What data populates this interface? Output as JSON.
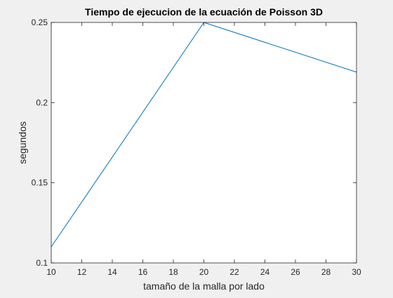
{
  "chart_data": {
    "type": "line",
    "title": "Tiempo de ejecucion de la ecuación de Poisson 3D",
    "xlabel": "tamaño de la malla por lado",
    "ylabel": "segundos",
    "xlim": [
      10,
      30
    ],
    "ylim": [
      0.1,
      0.25
    ],
    "xticks": [
      10,
      12,
      14,
      16,
      18,
      20,
      22,
      24,
      26,
      28,
      30
    ],
    "yticks": [
      0.1,
      0.15,
      0.2,
      0.25
    ],
    "ytick_labels": [
      "0.1",
      "0.15",
      "0.2",
      "0.25"
    ],
    "grid": false,
    "series": [
      {
        "x": [
          10,
          20,
          30
        ],
        "y": [
          0.11,
          0.25,
          0.219
        ],
        "color": "#0072bd"
      }
    ]
  }
}
